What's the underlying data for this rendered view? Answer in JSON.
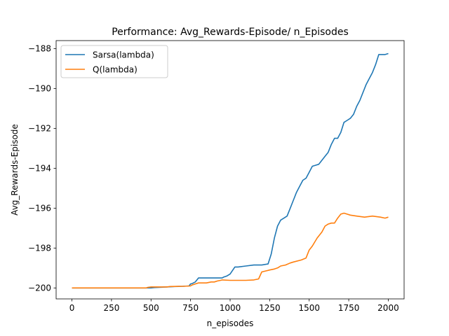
{
  "chart_data": {
    "type": "line",
    "title": "Performance: Avg_Rewards-Episode/ n_Episodes",
    "xlabel": "n_episodes",
    "ylabel": "Avg_Rewards-Episode",
    "xlim": [
      -100,
      2100
    ],
    "ylim": [
      -200.55,
      -187.6
    ],
    "xticks": [
      0,
      250,
      500,
      750,
      1000,
      1250,
      1500,
      1750,
      2000
    ],
    "yticks": [
      -200,
      -198,
      -196,
      -194,
      -192,
      -190,
      -188
    ],
    "grid": false,
    "legend_position": "top-left",
    "series": [
      {
        "name": "Sarsa(lambda)",
        "color": "#1f77b4",
        "x": [
          0,
          100,
          200,
          300,
          400,
          480,
          500,
          520,
          600,
          650,
          700,
          740,
          750,
          760,
          780,
          790,
          800,
          850,
          900,
          950,
          960,
          980,
          1000,
          1030,
          1050,
          1100,
          1150,
          1200,
          1240,
          1260,
          1280,
          1300,
          1320,
          1340,
          1360,
          1380,
          1400,
          1420,
          1440,
          1460,
          1480,
          1500,
          1520,
          1540,
          1560,
          1580,
          1600,
          1620,
          1640,
          1660,
          1680,
          1700,
          1720,
          1740,
          1760,
          1780,
          1800,
          1820,
          1840,
          1860,
          1880,
          1900,
          1920,
          1940,
          1960,
          1980,
          2000
        ],
        "y": [
          -200,
          -200,
          -200,
          -200,
          -200,
          -200,
          -200,
          -199.98,
          -199.95,
          -199.93,
          -199.92,
          -199.9,
          -199.8,
          -199.78,
          -199.7,
          -199.6,
          -199.5,
          -199.5,
          -199.5,
          -199.5,
          -199.45,
          -199.4,
          -199.3,
          -198.95,
          -198.95,
          -198.9,
          -198.85,
          -198.85,
          -198.8,
          -198.3,
          -197.5,
          -196.9,
          -196.6,
          -196.5,
          -196.4,
          -196.0,
          -195.6,
          -195.2,
          -194.9,
          -194.6,
          -194.5,
          -194.2,
          -193.9,
          -193.85,
          -193.8,
          -193.6,
          -193.4,
          -193.2,
          -192.8,
          -192.5,
          -192.5,
          -192.2,
          -191.7,
          -191.6,
          -191.5,
          -191.3,
          -190.9,
          -190.6,
          -190.2,
          -189.8,
          -189.5,
          -189.2,
          -188.8,
          -188.3,
          -188.3,
          -188.3,
          -188.25
        ]
      },
      {
        "name": "Q(lambda)",
        "color": "#ff7f0e",
        "x": [
          0,
          100,
          200,
          300,
          400,
          470,
          480,
          500,
          550,
          600,
          620,
          700,
          750,
          760,
          780,
          800,
          850,
          880,
          900,
          920,
          940,
          950,
          1000,
          1050,
          1100,
          1150,
          1180,
          1200,
          1250,
          1280,
          1300,
          1320,
          1350,
          1380,
          1400,
          1450,
          1480,
          1500,
          1520,
          1550,
          1580,
          1600,
          1620,
          1640,
          1660,
          1680,
          1700,
          1720,
          1740,
          1760,
          1800,
          1850,
          1900,
          1950,
          1980,
          2000
        ],
        "y": [
          -200,
          -200,
          -200,
          -200,
          -200,
          -200,
          -199.97,
          -199.95,
          -199.95,
          -199.95,
          -199.93,
          -199.92,
          -199.9,
          -199.85,
          -199.8,
          -199.75,
          -199.75,
          -199.7,
          -199.7,
          -199.65,
          -199.62,
          -199.6,
          -199.62,
          -199.62,
          -199.62,
          -199.6,
          -199.55,
          -199.2,
          -199.1,
          -199.05,
          -199.0,
          -198.9,
          -198.85,
          -198.75,
          -198.7,
          -198.6,
          -198.5,
          -198.1,
          -197.9,
          -197.5,
          -197.2,
          -196.9,
          -196.8,
          -196.75,
          -196.75,
          -196.5,
          -196.3,
          -196.25,
          -196.3,
          -196.35,
          -196.4,
          -196.45,
          -196.4,
          -196.45,
          -196.5,
          -196.45
        ]
      }
    ]
  }
}
